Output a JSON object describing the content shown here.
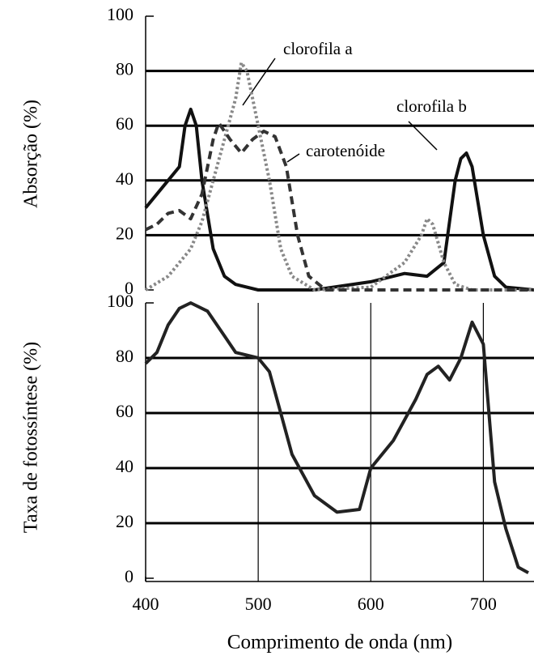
{
  "chart_data": [
    {
      "type": "line",
      "y_label": "Absorção (%)",
      "xlim": [
        400,
        745
      ],
      "ylim": [
        0,
        100
      ],
      "yticks": [
        0,
        20,
        40,
        60,
        80,
        100
      ],
      "grid": true,
      "series": [
        {
          "name": "clorofila a",
          "color": "#111111",
          "dash": "solid",
          "x": [
            400,
            410,
            420,
            430,
            435,
            440,
            445,
            450,
            460,
            470,
            480,
            500,
            550,
            600,
            630,
            650,
            665,
            675,
            680,
            685,
            690,
            700,
            710,
            720,
            745
          ],
          "values": [
            30,
            35,
            40,
            45,
            60,
            66,
            60,
            40,
            15,
            5,
            2,
            0,
            0,
            3,
            6,
            5,
            10,
            40,
            48,
            50,
            45,
            20,
            5,
            1,
            0
          ]
        },
        {
          "name": "clorofila b",
          "color": "#888888",
          "dash": "dotted",
          "x": [
            400,
            420,
            440,
            450,
            460,
            470,
            480,
            485,
            490,
            500,
            510,
            520,
            530,
            550,
            600,
            630,
            645,
            650,
            655,
            665,
            675,
            690,
            745
          ],
          "values": [
            0,
            5,
            15,
            25,
            40,
            55,
            70,
            83,
            80,
            60,
            40,
            15,
            5,
            0,
            1,
            10,
            20,
            26,
            24,
            10,
            2,
            0,
            0
          ]
        },
        {
          "name": "carotenóide",
          "color": "#333333",
          "dash": "dashed",
          "x": [
            400,
            410,
            420,
            430,
            440,
            450,
            460,
            465,
            475,
            485,
            495,
            505,
            515,
            525,
            535,
            545,
            560,
            650,
            745
          ],
          "values": [
            22,
            24,
            28,
            29,
            26,
            35,
            55,
            61,
            55,
            50,
            55,
            58,
            56,
            45,
            20,
            5,
            0,
            0,
            0
          ]
        }
      ]
    },
    {
      "type": "line",
      "y_label": "Taxa de fotossíntese (%)",
      "x_label": "Comprimento de onda (nm)",
      "xlim": [
        400,
        745
      ],
      "ylim": [
        0,
        100
      ],
      "xticks": [
        400,
        500,
        600,
        700
      ],
      "yticks": [
        0,
        20,
        40,
        60,
        80,
        100
      ],
      "grid": true,
      "series": [
        {
          "color": "#222222",
          "dash": "solid",
          "x": [
            400,
            410,
            420,
            430,
            440,
            455,
            470,
            480,
            500,
            510,
            520,
            530,
            550,
            570,
            590,
            600,
            620,
            640,
            650,
            660,
            670,
            680,
            690,
            700,
            705,
            710,
            720,
            731,
            740
          ],
          "values": [
            78,
            82,
            92,
            98,
            100,
            97,
            88,
            82,
            80,
            75,
            60,
            45,
            30,
            24,
            25,
            40,
            50,
            65,
            74,
            77,
            72,
            80,
            93,
            85,
            60,
            35,
            18,
            4,
            2
          ]
        }
      ]
    }
  ]
}
